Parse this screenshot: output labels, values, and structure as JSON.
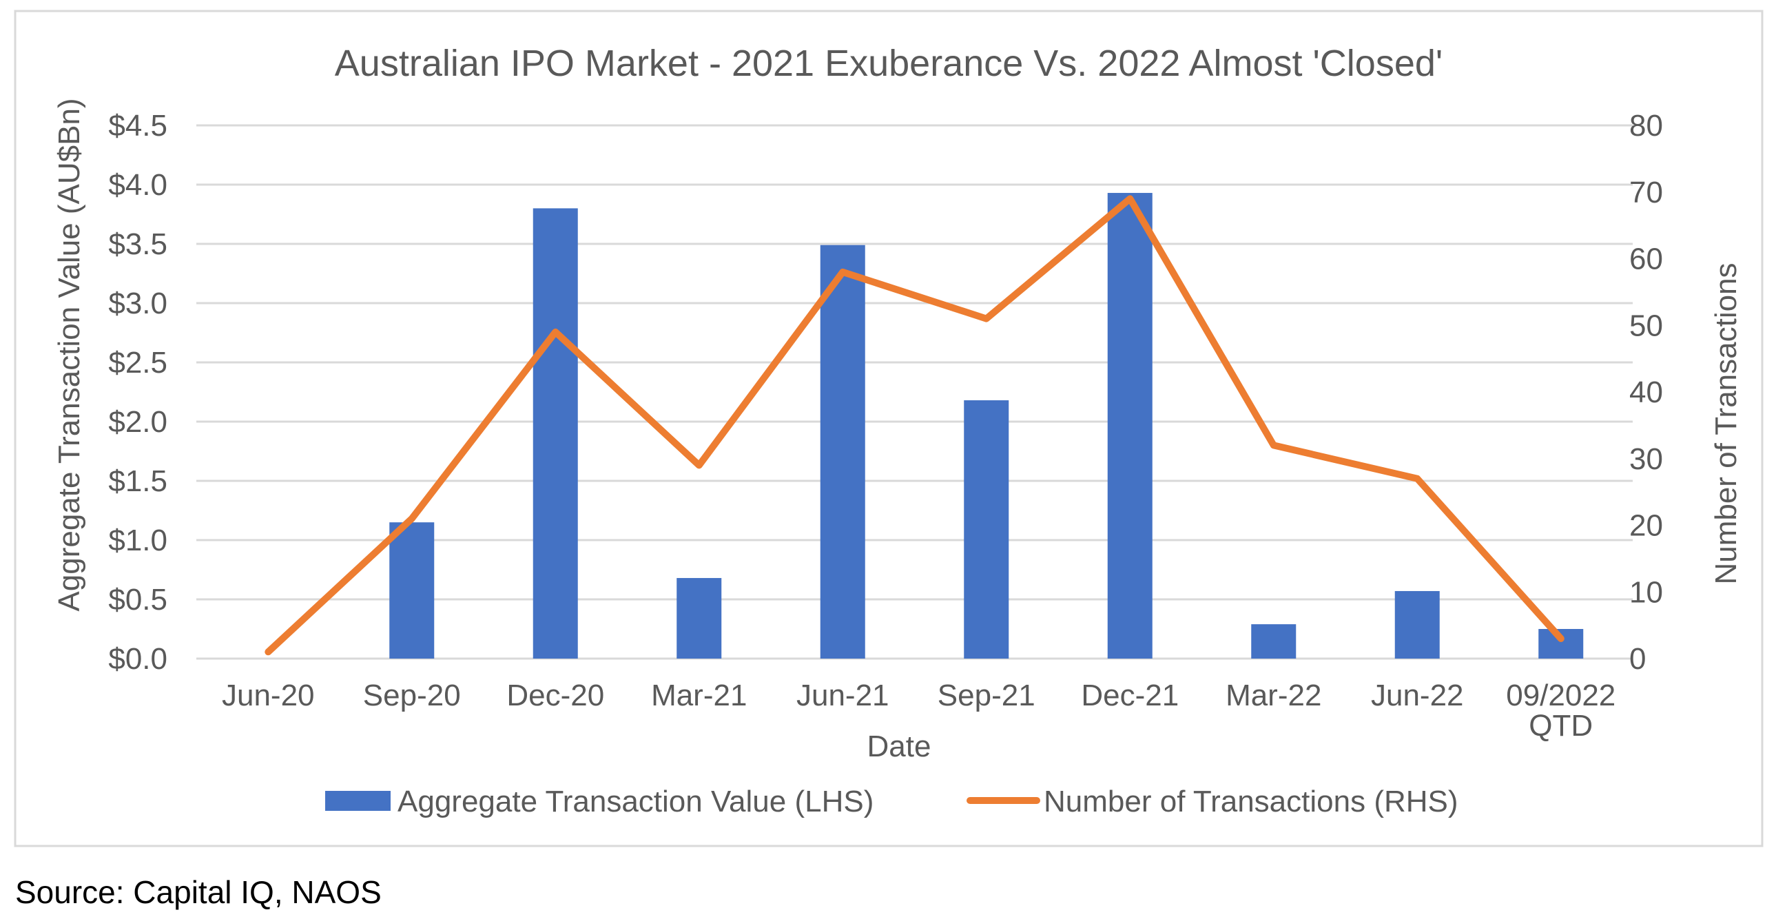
{
  "colors": {
    "bar": "#4472C4",
    "line": "#ED7D31",
    "grid": "#D9D9D9",
    "text": "#595959",
    "frame": "#D9D9D9"
  },
  "chart_data": {
    "type": "bar",
    "title": "Australian IPO Market - 2021 Exuberance Vs. 2022 Almost 'Closed'",
    "xlabel": "Date",
    "ylabel": "Aggregate Transaction Value (AU$Bn)",
    "y2label": "Number of Transactions",
    "categories": [
      [
        "Jun-20"
      ],
      [
        "Sep-20"
      ],
      [
        "Dec-20"
      ],
      [
        "Mar-21"
      ],
      [
        "Jun-21"
      ],
      [
        "Sep-21"
      ],
      [
        "Dec-21"
      ],
      [
        "Mar-22"
      ],
      [
        "Jun-22"
      ],
      [
        "09/2022",
        "QTD"
      ]
    ],
    "ylim": [
      0,
      4.5
    ],
    "y_ticks": [
      0,
      0.5,
      1.0,
      1.5,
      2.0,
      2.5,
      3.0,
      3.5,
      4.0,
      4.5
    ],
    "y_tick_labels": [
      "$0.0",
      "$0.5",
      "$1.0",
      "$1.5",
      "$2.0",
      "$2.5",
      "$3.0",
      "$3.5",
      "$4.0",
      "$4.5"
    ],
    "y2lim": [
      0,
      80
    ],
    "y2_ticks": [
      0,
      10,
      20,
      30,
      40,
      50,
      60,
      70,
      80
    ],
    "y2_tick_labels": [
      "0",
      "10",
      "20",
      "30",
      "40",
      "50",
      "60",
      "70",
      "80"
    ],
    "grid": true,
    "legend_position": "bottom",
    "series": [
      {
        "name": "Aggregate Transaction Value (LHS)",
        "type": "bar",
        "axis": "left",
        "values": [
          0,
          1.15,
          3.8,
          0.68,
          3.49,
          2.18,
          3.93,
          0.29,
          0.57,
          0.25
        ]
      },
      {
        "name": "Number of Transactions (RHS)",
        "type": "line",
        "axis": "right",
        "values": [
          1,
          21,
          49,
          29,
          58,
          51,
          69,
          32,
          27,
          3
        ]
      }
    ]
  },
  "source": "Source: Capital IQ, NAOS"
}
